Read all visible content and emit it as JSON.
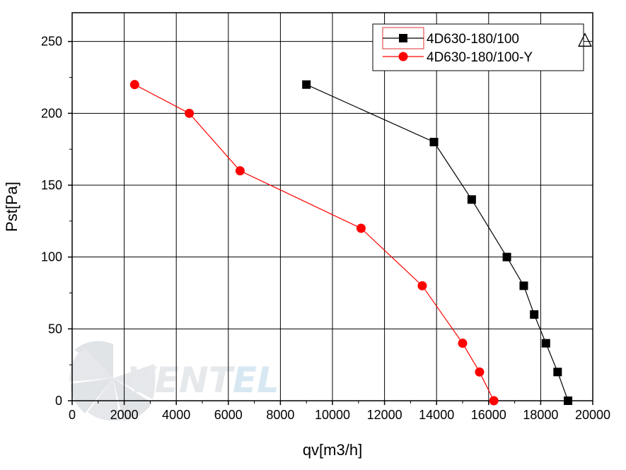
{
  "chart_data": {
    "type": "line",
    "xlabel": "qv[m3/h]",
    "ylabel": "Pst[Pa]",
    "xlim": [
      0,
      20000
    ],
    "ylim": [
      0,
      270
    ],
    "x_ticks": [
      0,
      2000,
      4000,
      6000,
      8000,
      10000,
      12000,
      14000,
      16000,
      18000,
      20000
    ],
    "y_ticks": [
      0,
      50,
      100,
      150,
      200,
      250
    ],
    "grid": true,
    "legend_position": "top-right",
    "series": [
      {
        "name": "4D630-180/100",
        "symbol_suffix": "△",
        "color": "#000000",
        "marker": "square",
        "points": [
          {
            "x": 9000,
            "y": 220
          },
          {
            "x": 13900,
            "y": 180
          },
          {
            "x": 15350,
            "y": 140
          },
          {
            "x": 16700,
            "y": 100
          },
          {
            "x": 17350,
            "y": 80
          },
          {
            "x": 17750,
            "y": 60
          },
          {
            "x": 18200,
            "y": 40
          },
          {
            "x": 18650,
            "y": 20
          },
          {
            "x": 19050,
            "y": 0
          }
        ]
      },
      {
        "name": "4D630-180/100-Y",
        "color": "#ff0000",
        "marker": "circle",
        "points": [
          {
            "x": 2400,
            "y": 220
          },
          {
            "x": 4500,
            "y": 200
          },
          {
            "x": 6450,
            "y": 160
          },
          {
            "x": 11100,
            "y": 120
          },
          {
            "x": 13450,
            "y": 80
          },
          {
            "x": 15000,
            "y": 40
          },
          {
            "x": 15650,
            "y": 20
          },
          {
            "x": 16200,
            "y": 0
          }
        ]
      }
    ]
  },
  "watermark": {
    "text": "VENTEL",
    "color_main": "#d3d8de",
    "color_accent": "#b9d6ea",
    "icon": "fan-icon"
  }
}
